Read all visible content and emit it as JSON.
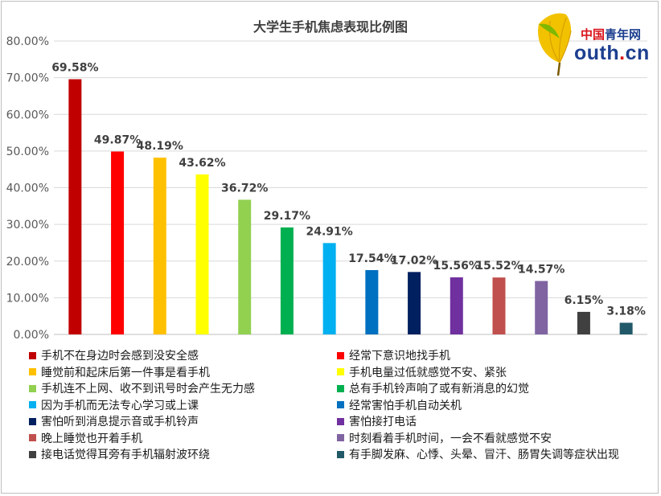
{
  "chart_data": {
    "type": "bar",
    "title": "大学生手机焦虑表现比例图",
    "ylim": [
      0,
      80
    ],
    "yticks": [
      "0.00%",
      "10.00%",
      "20.00%",
      "30.00%",
      "40.00%",
      "50.00%",
      "60.00%",
      "70.00%",
      "80.00%"
    ],
    "grid": true,
    "legend_position": "bottom",
    "series": [
      {
        "name": "手机不在身边时会感到没安全感",
        "value": 69.58,
        "label": "69.58%",
        "color": "#c00000"
      },
      {
        "name": "经常下意识地找手机",
        "value": 49.87,
        "label": "49.87%",
        "color": "#ff0000"
      },
      {
        "name": "睡觉前和起床后第一件事是看手机",
        "value": 48.19,
        "label": "48.19%",
        "color": "#ffc000"
      },
      {
        "name": "手机电量过低就感觉不安、紧张",
        "value": 43.62,
        "label": "43.62%",
        "color": "#ffff00"
      },
      {
        "name": "手机连不上网、收不到讯号时会产生无力感",
        "value": 36.72,
        "label": "36.72%",
        "color": "#92d050"
      },
      {
        "name": "总有手机铃声响了或有新消息的幻觉",
        "value": 29.17,
        "label": "29.17%",
        "color": "#00b050"
      },
      {
        "name": "因为手机而无法专心学习或上课",
        "value": 24.91,
        "label": "24.91%",
        "color": "#00b0f0"
      },
      {
        "name": "经常害怕手机自动关机",
        "value": 17.54,
        "label": "17.54%",
        "color": "#0070c0"
      },
      {
        "name": "害怕听到消息提示音或手机铃声",
        "value": 17.02,
        "label": "17.02%",
        "color": "#002060"
      },
      {
        "name": "害怕接打电话",
        "value": 15.56,
        "label": "15.56%",
        "color": "#7030a0"
      },
      {
        "name": "晚上睡觉也开着手机",
        "value": 15.52,
        "label": "15.52%",
        "color": "#c0504d"
      },
      {
        "name": "时刻看着手机时间，一会不看就感觉不安",
        "value": 14.57,
        "label": "14.57%",
        "color": "#8064a2"
      },
      {
        "name": "接电话觉得耳旁有手机辐射波环绕",
        "value": 6.15,
        "label": "6.15%",
        "color": "#404040"
      },
      {
        "name": "有手脚发麻、心悸、头晕、冒汗、肠胃失调等症状出现",
        "value": 3.18,
        "label": "3.18%",
        "color": "#215968"
      }
    ]
  },
  "logo": {
    "cn_red": "中国",
    "cn_blue": "青年网",
    "en_main": "outh",
    "en_dot": ".",
    "en_tld": "cn"
  }
}
